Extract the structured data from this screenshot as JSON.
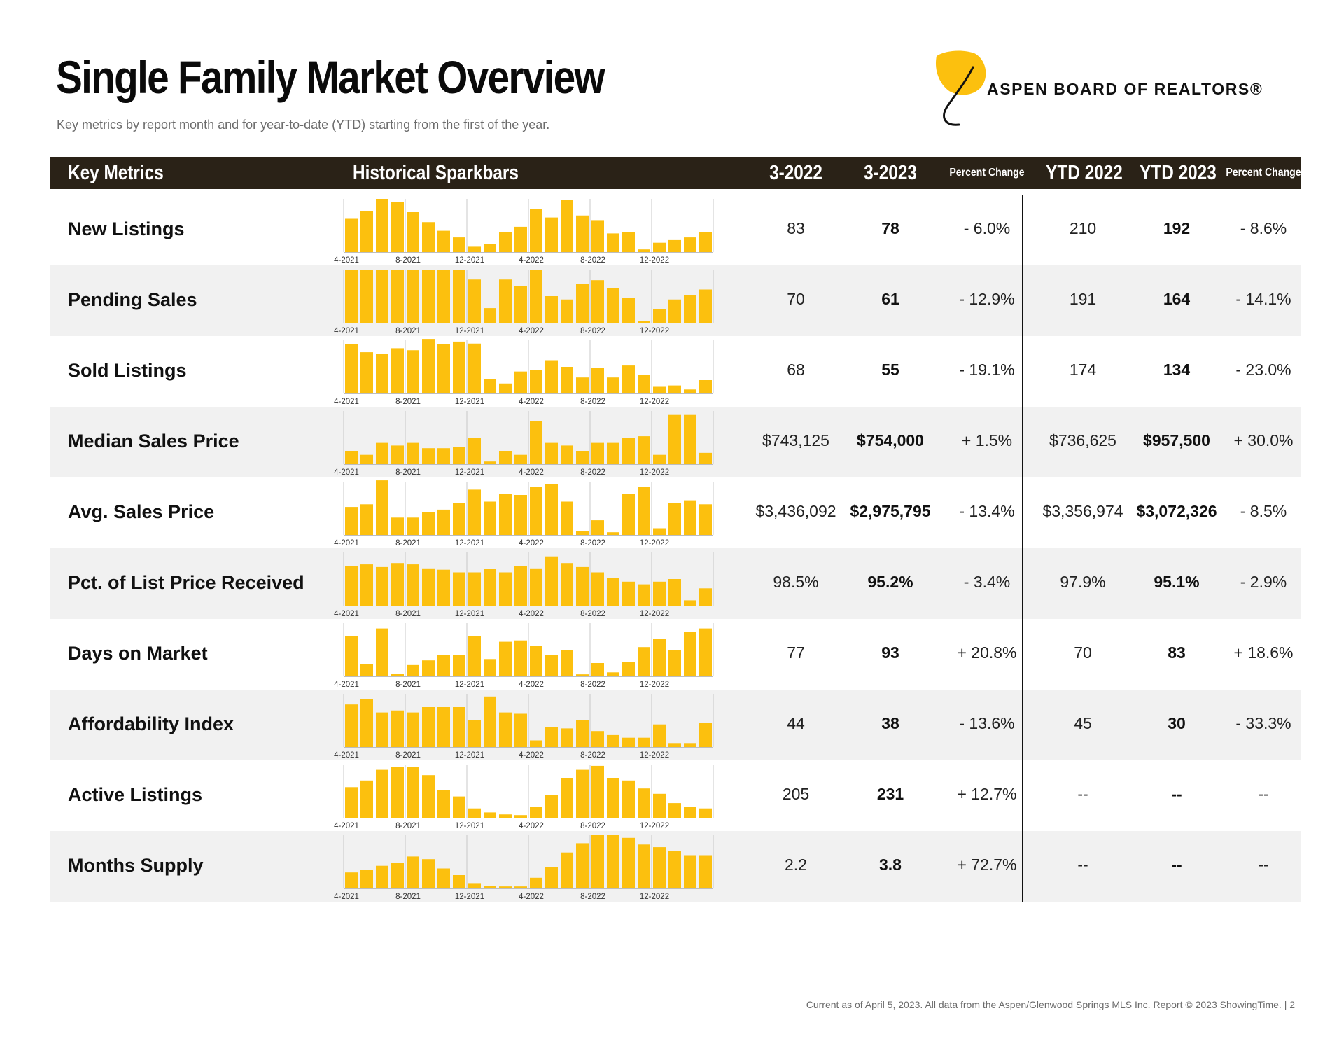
{
  "header": {
    "title": "Single Family Market Overview",
    "subtitle": "Key metrics by report month and for year-to-date (YTD) starting from the first of the year.",
    "logo_text": "ASPEN BOARD OF REALTORS®"
  },
  "table_header": {
    "key_metrics": "Key Metrics",
    "sparkbars": "Historical Sparkbars",
    "col_2022": "3-2022",
    "col_2023": "3-2023",
    "pct_change": "Percent Change",
    "ytd_2022": "YTD 2022",
    "ytd_2023": "YTD 2023",
    "ytd_pct_change": "Percent Change"
  },
  "sparkbar_axis_labels": [
    "4-2021",
    "8-2021",
    "12-2021",
    "4-2022",
    "8-2022",
    "12-2022"
  ],
  "colors": {
    "bar": "#fcc00e",
    "header_bg": "#2a2217",
    "shaded_row": "#f1f1f1",
    "logo_leaf": "#fcc00e"
  },
  "rows": [
    {
      "label": "New Listings",
      "m2022": "83",
      "m2023": "78",
      "pct": "- 6.0%",
      "ytd2022": "210",
      "ytd2023": "192",
      "ytd_pct": "- 8.6%",
      "bars": [
        50,
        62,
        80,
        75,
        60,
        45,
        32,
        22,
        8,
        12,
        30,
        38,
        65,
        52,
        78,
        55,
        48,
        28,
        30,
        4,
        14,
        18,
        22,
        30
      ]
    },
    {
      "label": "Pending Sales",
      "m2022": "70",
      "m2023": "61",
      "pct": "- 12.9%",
      "ytd2022": "191",
      "ytd2023": "164",
      "ytd_pct": "- 14.1%",
      "bars": [
        80,
        80,
        80,
        80,
        80,
        80,
        80,
        80,
        65,
        22,
        65,
        55,
        80,
        40,
        35,
        58,
        64,
        52,
        37,
        2,
        20,
        35,
        42,
        50
      ]
    },
    {
      "label": "Sold Listings",
      "m2022": "68",
      "m2023": "55",
      "pct": "- 19.1%",
      "ytd2022": "174",
      "ytd2023": "134",
      "ytd_pct": "- 23.0%",
      "bars": [
        74,
        62,
        60,
        68,
        65,
        82,
        74,
        78,
        75,
        22,
        15,
        33,
        35,
        50,
        40,
        24,
        38,
        24,
        42,
        28,
        10,
        12,
        6,
        20
      ]
    },
    {
      "label": "Median Sales Price",
      "m2022": "$743,125",
      "m2023": "$754,000",
      "pct": "+ 1.5%",
      "ytd2022": "$736,625",
      "ytd2023": "$957,500",
      "ytd_pct": "+ 30.0%",
      "bars": [
        20,
        14,
        32,
        28,
        32,
        24,
        24,
        26,
        40,
        4,
        20,
        14,
        65,
        32,
        28,
        20,
        32,
        32,
        40,
        42,
        14,
        74,
        74,
        17
      ]
    },
    {
      "label": "Avg. Sales Price",
      "m2022": "$3,436,092",
      "m2023": "$2,975,795",
      "pct": "- 13.4%",
      "ytd2022": "$3,356,974",
      "ytd2023": "$3,072,326",
      "ytd_pct": "- 8.5%",
      "bars": [
        42,
        46,
        82,
        26,
        26,
        34,
        38,
        48,
        68,
        50,
        62,
        60,
        72,
        76,
        50,
        6,
        22,
        4,
        62,
        72,
        10,
        48,
        52,
        46
      ]
    },
    {
      "label": "Pct. of List Price Received",
      "m2022": "98.5%",
      "m2023": "95.2%",
      "pct": "- 3.4%",
      "ytd2022": "97.9%",
      "ytd2023": "95.1%",
      "ytd_pct": "- 2.9%",
      "bars": [
        60,
        62,
        58,
        64,
        62,
        56,
        54,
        50,
        50,
        55,
        50,
        60,
        56,
        74,
        64,
        58,
        50,
        42,
        36,
        32,
        36,
        40,
        8,
        26
      ]
    },
    {
      "label": "Days on Market",
      "m2022": "77",
      "m2023": "93",
      "pct": "+ 20.8%",
      "ytd2022": "70",
      "ytd2023": "83",
      "ytd_pct": "+ 18.6%",
      "bars": [
        60,
        18,
        72,
        4,
        17,
        24,
        32,
        32,
        60,
        26,
        52,
        54,
        46,
        32,
        40,
        3,
        20,
        6,
        22,
        44,
        56,
        40,
        67,
        72
      ]
    },
    {
      "label": "Affordability Index",
      "m2022": "44",
      "m2023": "38",
      "pct": "- 13.6%",
      "ytd2022": "45",
      "ytd2023": "30",
      "ytd_pct": "- 33.3%",
      "bars": [
        64,
        72,
        52,
        55,
        52,
        60,
        60,
        60,
        40,
        76,
        52,
        50,
        10,
        30,
        28,
        40,
        24,
        18,
        14,
        14,
        34,
        6,
        6,
        36
      ]
    },
    {
      "label": "Active Listings",
      "m2022": "205",
      "m2023": "231",
      "pct": "+ 12.7%",
      "ytd2022": "--",
      "ytd2023": "--",
      "ytd_pct": "--",
      "bars": [
        46,
        56,
        72,
        76,
        76,
        64,
        42,
        32,
        14,
        8,
        5,
        4,
        16,
        34,
        60,
        72,
        78,
        60,
        56,
        44,
        36,
        22,
        16,
        14
      ]
    },
    {
      "label": "Months Supply",
      "m2022": "2.2",
      "m2023": "3.8",
      "pct": "+ 72.7%",
      "ytd2022": "--",
      "ytd2023": "--",
      "ytd_pct": "--",
      "bars": [
        24,
        28,
        34,
        38,
        48,
        44,
        30,
        20,
        8,
        4,
        3,
        3,
        16,
        32,
        54,
        68,
        80,
        80,
        76,
        66,
        62,
        56,
        50,
        50
      ]
    }
  ],
  "footer": "Current as of April 5, 2023. All data from the Aspen/Glenwood Springs MLS Inc. Report © 2023 ShowingTime.  |  2"
}
